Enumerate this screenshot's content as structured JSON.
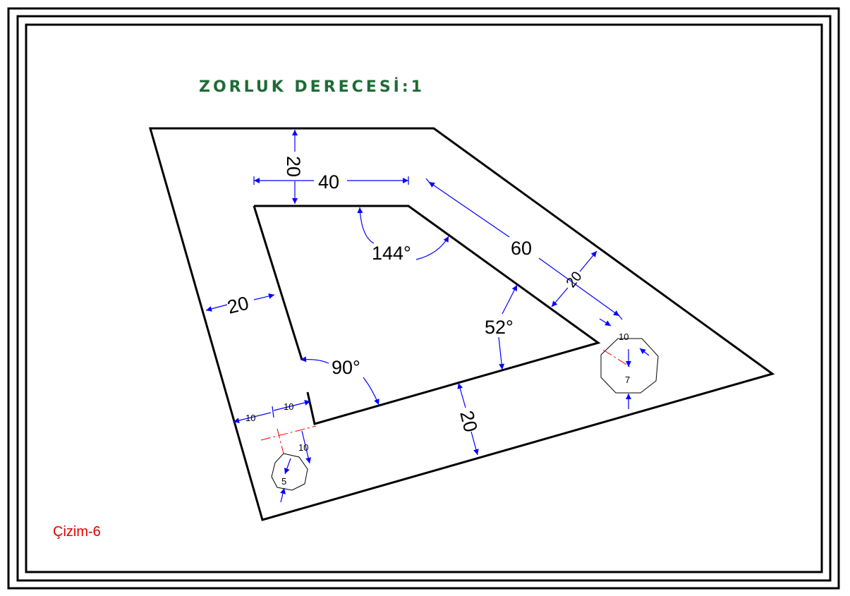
{
  "header": {
    "title": "ZORLUK DERECESİ:1",
    "title_color": "#1e6b35"
  },
  "footer": {
    "caption": "Çizim-6",
    "caption_color": "#e00000"
  },
  "drawing": {
    "outline_color": "#000000",
    "dimension_color": "#0000ff",
    "centerline_color": "#ff0000",
    "dimensions": {
      "top_width": "20",
      "inner_top": "40",
      "slant_length": "60",
      "slant_width": "20",
      "left_width": "20",
      "bottom_width": "20",
      "hole_offset_left": "10",
      "hole_offset_inner": "10",
      "hole_offset_bottom": "10",
      "hole_offset_right": "10"
    },
    "angles": {
      "top_inner": "144°",
      "right_inner": "52°",
      "left_inner": "90°"
    },
    "holes": {
      "left_size": "5",
      "right_size": "7"
    }
  }
}
